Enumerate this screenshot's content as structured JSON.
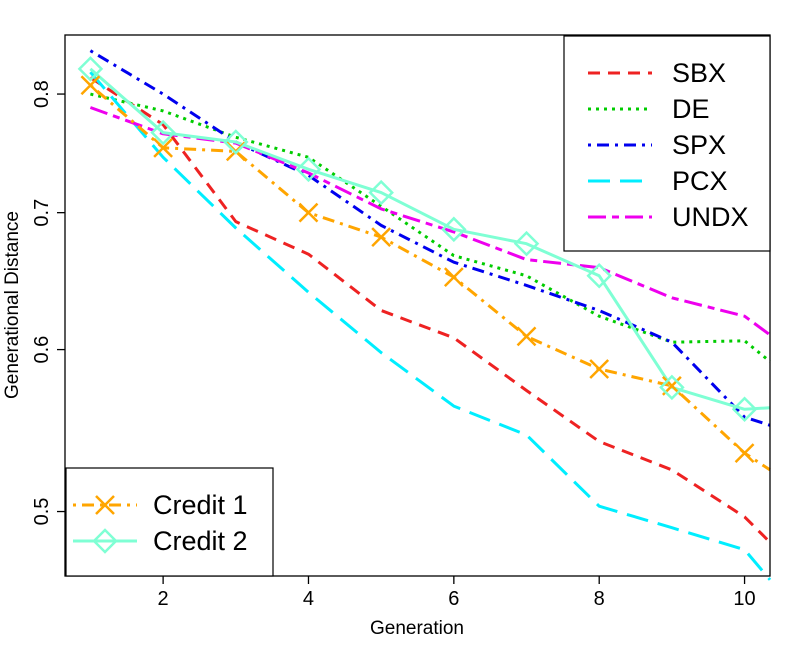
{
  "chart_data": {
    "type": "line",
    "xlabel": "Generation",
    "ylabel": "Generational Distance",
    "x": [
      1,
      2,
      3,
      4,
      5,
      6,
      7,
      8,
      9,
      10,
      10.35
    ],
    "xlim": [
      0.65,
      10.35
    ],
    "ylim": [
      0.465,
      0.855
    ],
    "y_scale": "log",
    "xticks": [
      2,
      4,
      6,
      8,
      10
    ],
    "xtick_labels": [
      "2",
      "4",
      "6",
      "8",
      "10"
    ],
    "yticks": [
      0.5,
      0.6,
      0.7,
      0.8
    ],
    "ytick_labels": [
      "0.5",
      "0.6",
      "0.7",
      "0.8"
    ],
    "grid": false,
    "legends": [
      {
        "placement": "top-right",
        "entries": [
          "SBX",
          "DE",
          "SPX",
          "PCX",
          "UNDX"
        ]
      },
      {
        "placement": "bottom-left",
        "entries": [
          "Credit 1",
          "Credit 2"
        ]
      }
    ],
    "series": [
      {
        "name": "SBX",
        "color": "#ee2222",
        "dash": "dashed",
        "marker": "none",
        "values": [
          0.815,
          0.773,
          0.693,
          0.668,
          0.627,
          0.608,
          0.573,
          0.541,
          0.524,
          0.497,
          0.483
        ]
      },
      {
        "name": "DE",
        "color": "#00cc00",
        "dash": "dotted",
        "marker": "none",
        "values": [
          0.8,
          0.785,
          0.762,
          0.745,
          0.705,
          0.667,
          0.652,
          0.623,
          0.605,
          0.606,
          0.592
        ]
      },
      {
        "name": "SPX",
        "color": "#0000ee",
        "dash": "dotdash",
        "marker": "none",
        "values": [
          0.84,
          0.8,
          0.758,
          0.73,
          0.69,
          0.662,
          0.645,
          0.627,
          0.605,
          0.556,
          0.551
        ]
      },
      {
        "name": "PCX",
        "color": "#00eeff",
        "dash": "longdash",
        "marker": "none",
        "values": [
          0.82,
          0.745,
          0.688,
          0.64,
          0.598,
          0.563,
          0.545,
          0.503,
          0.491,
          0.479,
          0.463
        ]
      },
      {
        "name": "UNDX",
        "color": "#ee00ee",
        "dash": "twodash",
        "marker": "none",
        "values": [
          0.788,
          0.765,
          0.757,
          0.732,
          0.703,
          0.685,
          0.664,
          0.658,
          0.636,
          0.623,
          0.61
        ]
      },
      {
        "name": "Credit 1",
        "color": "#ffa500",
        "dash": "dotdash",
        "marker": "x",
        "values": [
          0.808,
          0.753,
          0.75,
          0.7,
          0.681,
          0.651,
          0.609,
          0.587,
          0.576,
          0.534,
          0.524
        ]
      },
      {
        "name": "Credit 2",
        "color": "#7fffd4",
        "dash": "solid",
        "marker": "diamond",
        "values": [
          0.823,
          0.766,
          0.758,
          0.735,
          0.716,
          0.687,
          0.676,
          0.652,
          0.575,
          0.561,
          0.562
        ]
      }
    ]
  }
}
